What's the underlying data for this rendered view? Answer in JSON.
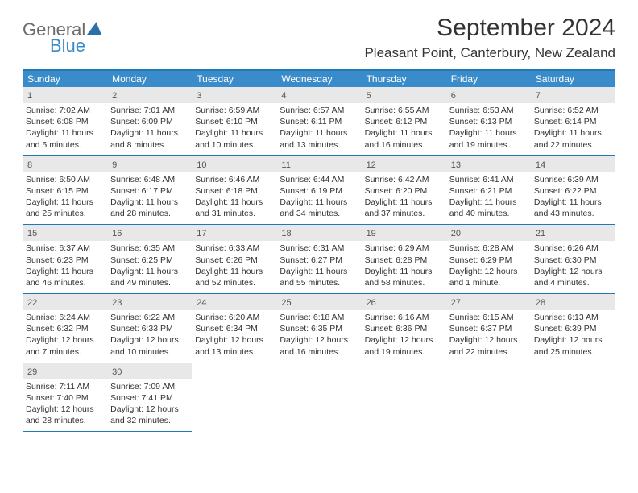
{
  "logo": {
    "general": "General",
    "blue": "Blue"
  },
  "title": "September 2024",
  "location": "Pleasant Point, Canterbury, New Zealand",
  "colors": {
    "header_bg": "#3a8bc9",
    "header_border": "#2079b7",
    "daynum_bg": "#e8e8e8",
    "text": "#333333",
    "logo_gray": "#6b6b6b",
    "logo_blue": "#3a8bc9"
  },
  "days_of_week": [
    "Sunday",
    "Monday",
    "Tuesday",
    "Wednesday",
    "Thursday",
    "Friday",
    "Saturday"
  ],
  "leading_blanks": 0,
  "days": [
    {
      "n": 1,
      "sunrise": "7:02 AM",
      "sunset": "6:08 PM",
      "daylight": "11 hours and 5 minutes."
    },
    {
      "n": 2,
      "sunrise": "7:01 AM",
      "sunset": "6:09 PM",
      "daylight": "11 hours and 8 minutes."
    },
    {
      "n": 3,
      "sunrise": "6:59 AM",
      "sunset": "6:10 PM",
      "daylight": "11 hours and 10 minutes."
    },
    {
      "n": 4,
      "sunrise": "6:57 AM",
      "sunset": "6:11 PM",
      "daylight": "11 hours and 13 minutes."
    },
    {
      "n": 5,
      "sunrise": "6:55 AM",
      "sunset": "6:12 PM",
      "daylight": "11 hours and 16 minutes."
    },
    {
      "n": 6,
      "sunrise": "6:53 AM",
      "sunset": "6:13 PM",
      "daylight": "11 hours and 19 minutes."
    },
    {
      "n": 7,
      "sunrise": "6:52 AM",
      "sunset": "6:14 PM",
      "daylight": "11 hours and 22 minutes."
    },
    {
      "n": 8,
      "sunrise": "6:50 AM",
      "sunset": "6:15 PM",
      "daylight": "11 hours and 25 minutes."
    },
    {
      "n": 9,
      "sunrise": "6:48 AM",
      "sunset": "6:17 PM",
      "daylight": "11 hours and 28 minutes."
    },
    {
      "n": 10,
      "sunrise": "6:46 AM",
      "sunset": "6:18 PM",
      "daylight": "11 hours and 31 minutes."
    },
    {
      "n": 11,
      "sunrise": "6:44 AM",
      "sunset": "6:19 PM",
      "daylight": "11 hours and 34 minutes."
    },
    {
      "n": 12,
      "sunrise": "6:42 AM",
      "sunset": "6:20 PM",
      "daylight": "11 hours and 37 minutes."
    },
    {
      "n": 13,
      "sunrise": "6:41 AM",
      "sunset": "6:21 PM",
      "daylight": "11 hours and 40 minutes."
    },
    {
      "n": 14,
      "sunrise": "6:39 AM",
      "sunset": "6:22 PM",
      "daylight": "11 hours and 43 minutes."
    },
    {
      "n": 15,
      "sunrise": "6:37 AM",
      "sunset": "6:23 PM",
      "daylight": "11 hours and 46 minutes."
    },
    {
      "n": 16,
      "sunrise": "6:35 AM",
      "sunset": "6:25 PM",
      "daylight": "11 hours and 49 minutes."
    },
    {
      "n": 17,
      "sunrise": "6:33 AM",
      "sunset": "6:26 PM",
      "daylight": "11 hours and 52 minutes."
    },
    {
      "n": 18,
      "sunrise": "6:31 AM",
      "sunset": "6:27 PM",
      "daylight": "11 hours and 55 minutes."
    },
    {
      "n": 19,
      "sunrise": "6:29 AM",
      "sunset": "6:28 PM",
      "daylight": "11 hours and 58 minutes."
    },
    {
      "n": 20,
      "sunrise": "6:28 AM",
      "sunset": "6:29 PM",
      "daylight": "12 hours and 1 minute."
    },
    {
      "n": 21,
      "sunrise": "6:26 AM",
      "sunset": "6:30 PM",
      "daylight": "12 hours and 4 minutes."
    },
    {
      "n": 22,
      "sunrise": "6:24 AM",
      "sunset": "6:32 PM",
      "daylight": "12 hours and 7 minutes."
    },
    {
      "n": 23,
      "sunrise": "6:22 AM",
      "sunset": "6:33 PM",
      "daylight": "12 hours and 10 minutes."
    },
    {
      "n": 24,
      "sunrise": "6:20 AM",
      "sunset": "6:34 PM",
      "daylight": "12 hours and 13 minutes."
    },
    {
      "n": 25,
      "sunrise": "6:18 AM",
      "sunset": "6:35 PM",
      "daylight": "12 hours and 16 minutes."
    },
    {
      "n": 26,
      "sunrise": "6:16 AM",
      "sunset": "6:36 PM",
      "daylight": "12 hours and 19 minutes."
    },
    {
      "n": 27,
      "sunrise": "6:15 AM",
      "sunset": "6:37 PM",
      "daylight": "12 hours and 22 minutes."
    },
    {
      "n": 28,
      "sunrise": "6:13 AM",
      "sunset": "6:39 PM",
      "daylight": "12 hours and 25 minutes."
    },
    {
      "n": 29,
      "sunrise": "7:11 AM",
      "sunset": "7:40 PM",
      "daylight": "12 hours and 28 minutes."
    },
    {
      "n": 30,
      "sunrise": "7:09 AM",
      "sunset": "7:41 PM",
      "daylight": "12 hours and 32 minutes."
    }
  ],
  "labels": {
    "sunrise_prefix": "Sunrise: ",
    "sunset_prefix": "Sunset: ",
    "daylight_prefix": "Daylight: "
  }
}
